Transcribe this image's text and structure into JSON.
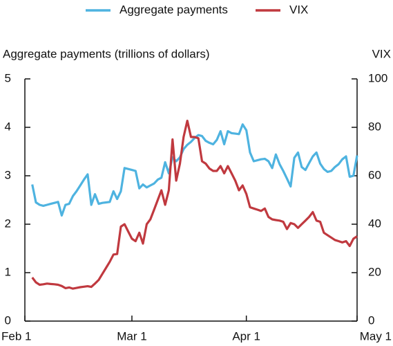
{
  "chart_data": {
    "type": "line",
    "y_label": "Aggregate payments (trillions of dollars)",
    "y2_label": "VIX",
    "x": [
      2,
      3,
      4,
      5,
      6,
      7,
      8,
      9,
      10,
      11,
      12,
      13,
      14,
      15,
      16,
      17,
      18,
      19,
      20,
      21,
      22,
      23,
      24,
      25,
      26,
      27,
      28,
      29,
      30,
      31,
      32,
      33,
      34,
      35,
      36,
      37,
      38,
      39,
      40,
      41,
      42,
      43,
      44,
      45,
      46,
      47,
      48,
      49,
      50,
      51,
      52,
      53,
      54,
      55,
      56,
      57,
      58,
      59,
      60,
      61,
      62,
      63,
      64,
      65,
      66,
      67,
      68,
      69,
      70,
      71,
      72,
      73,
      74,
      75,
      76,
      77,
      78,
      79,
      80,
      81,
      82,
      83,
      84,
      85,
      86,
      87,
      88,
      89,
      90
    ],
    "series": [
      {
        "name": "Aggregate payments",
        "color": "#4eb3e0",
        "axis": "y",
        "values": [
          2.82,
          2.45,
          2.4,
          2.38,
          2.4,
          2.42,
          2.44,
          2.46,
          2.18,
          2.4,
          2.42,
          2.58,
          2.68,
          2.8,
          2.92,
          3.03,
          2.4,
          2.62,
          2.42,
          2.44,
          2.45,
          2.46,
          2.68,
          2.52,
          2.68,
          3.16,
          3.14,
          3.12,
          3.1,
          2.74,
          2.82,
          2.76,
          2.8,
          2.84,
          2.92,
          2.96,
          3.28,
          3.05,
          3.38,
          3.3,
          3.38,
          3.55,
          3.64,
          3.7,
          3.78,
          3.84,
          3.82,
          3.72,
          3.68,
          3.65,
          3.74,
          3.92,
          3.65,
          3.92,
          3.88,
          3.87,
          3.86,
          4.06,
          3.94,
          3.48,
          3.3,
          3.32,
          3.34,
          3.35,
          3.3,
          3.16,
          3.44,
          3.24,
          3.1,
          2.94,
          2.78,
          3.37,
          3.48,
          3.18,
          3.12,
          3.26,
          3.4,
          3.48,
          3.25,
          3.14,
          3.08,
          3.1,
          3.18,
          3.24,
          3.34,
          3.4,
          2.98,
          3.0,
          3.42
        ]
      },
      {
        "name": "VIX",
        "color": "#c0393f",
        "axis": "y2",
        "values": [
          18,
          16,
          15,
          15.2,
          15.5,
          15.3,
          15.2,
          15.0,
          14.5,
          13.6,
          13.9,
          13.4,
          13.7,
          14.0,
          14.2,
          14.4,
          14.1,
          15.5,
          17,
          19.5,
          22,
          24.5,
          27.5,
          27.7,
          39,
          40,
          37,
          34,
          33,
          36.5,
          32,
          40,
          42,
          46,
          50,
          54,
          48,
          54,
          75,
          58,
          65,
          76,
          82.7,
          76,
          76,
          75.5,
          66,
          65,
          63,
          62,
          62,
          64,
          61,
          64,
          61,
          58,
          54,
          56,
          52.5,
          47,
          46.5,
          46,
          45.5,
          46.5,
          43,
          42,
          41.7,
          41.5,
          41,
          38,
          40.5,
          40,
          38.5,
          40,
          41.5,
          43,
          45,
          41.5,
          41,
          36.5,
          35.5,
          34.5,
          33.5,
          33,
          32.5,
          33,
          31,
          34,
          35
        ]
      }
    ],
    "xlim": [
      0,
      90
    ],
    "xticks": [
      {
        "value": 0,
        "label": "Feb 1"
      },
      {
        "value": 29,
        "label": "Mar 1"
      },
      {
        "value": 60,
        "label": "Apr 1"
      },
      {
        "value": 90,
        "label": "May 1"
      }
    ],
    "ylim": [
      0,
      5
    ],
    "yticks": [
      0,
      1,
      2,
      3,
      4,
      5
    ],
    "y2lim": [
      0,
      100
    ],
    "y2ticks": [
      0,
      20,
      40,
      60,
      80,
      100
    ],
    "grid": false,
    "legend": "top"
  }
}
